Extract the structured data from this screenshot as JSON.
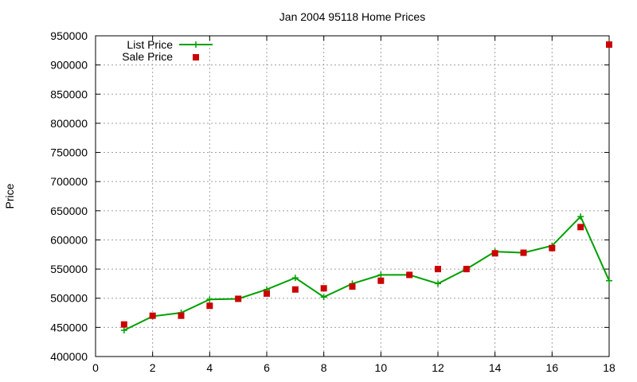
{
  "chart_data": {
    "type": "line",
    "title": "Jan 2004 95118 Home Prices",
    "xlabel": "",
    "ylabel": "Price",
    "xlim": [
      0,
      18
    ],
    "ylim": [
      400000,
      950000
    ],
    "xticks": [
      0,
      2,
      4,
      6,
      8,
      10,
      12,
      14,
      16,
      18
    ],
    "yticks": [
      400000,
      450000,
      500000,
      550000,
      600000,
      650000,
      700000,
      750000,
      800000,
      850000,
      900000,
      950000
    ],
    "grid": true,
    "legend_position": "top-left",
    "series": [
      {
        "name": "List Price",
        "style": "line-with-plus-markers",
        "color": "#00a000",
        "x": [
          1,
          2,
          3,
          4,
          5,
          6,
          7,
          8,
          9,
          10,
          11,
          12,
          13,
          14,
          15,
          16,
          17,
          18
        ],
        "values": [
          445000,
          469000,
          475000,
          498000,
          499000,
          515000,
          535000,
          502000,
          525000,
          540000,
          540000,
          525000,
          550000,
          580000,
          578000,
          590000,
          640000,
          530000
        ]
      },
      {
        "name": "Sale Price",
        "style": "square-points",
        "color": "#cc0000",
        "x": [
          1,
          2,
          3,
          4,
          5,
          6,
          7,
          8,
          9,
          10,
          11,
          12,
          13,
          14,
          15,
          16,
          17,
          18
        ],
        "values": [
          455000,
          470000,
          470000,
          487000,
          499000,
          508000,
          515000,
          517000,
          520000,
          530000,
          540000,
          550000,
          550000,
          577000,
          578000,
          586000,
          622000,
          935000
        ]
      }
    ]
  }
}
